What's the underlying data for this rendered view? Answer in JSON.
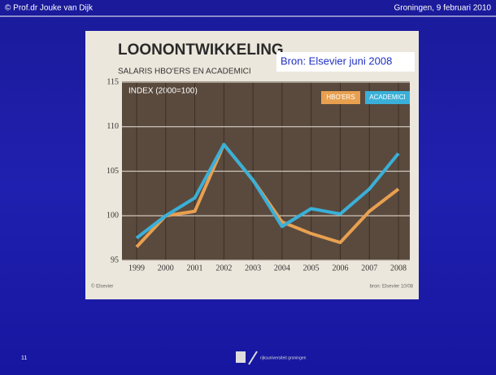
{
  "slide": {
    "author": "© Prof.dr Jouke van Dijk",
    "place_date": "Groningen, 9 februari 2010",
    "number": "11",
    "logo_text": "rijksuniversiteit groningen",
    "source_note": "Bron: Elsevier juni 2008"
  },
  "chart_data": {
    "type": "line",
    "title": "LOONONTWIKKELING",
    "subtitle": "SALARIS HBO'ERS EN ACADEMICI",
    "y_label": "INDEX (2000=100)",
    "categories": [
      "1999",
      "2000",
      "2001",
      "2002",
      "2003",
      "2004",
      "2005",
      "2006",
      "2007",
      "2008"
    ],
    "series": [
      {
        "name": "HBO'ERS",
        "color": "#e8a050",
        "values": [
          96.5,
          100,
          100.5,
          108,
          104,
          99.3,
          98,
          97,
          100.5,
          103
        ]
      },
      {
        "name": "ACADEMICI",
        "color": "#3ab0d8",
        "values": [
          97.5,
          100,
          102,
          108,
          104,
          98.8,
          100.8,
          100.2,
          103,
          107
        ]
      }
    ],
    "ylim": [
      95,
      115
    ],
    "yticks": [
      95,
      100,
      105,
      110,
      115
    ],
    "grid": true,
    "credit": "© Elsevier",
    "footnote": "bron: Elsevier 10/08"
  }
}
